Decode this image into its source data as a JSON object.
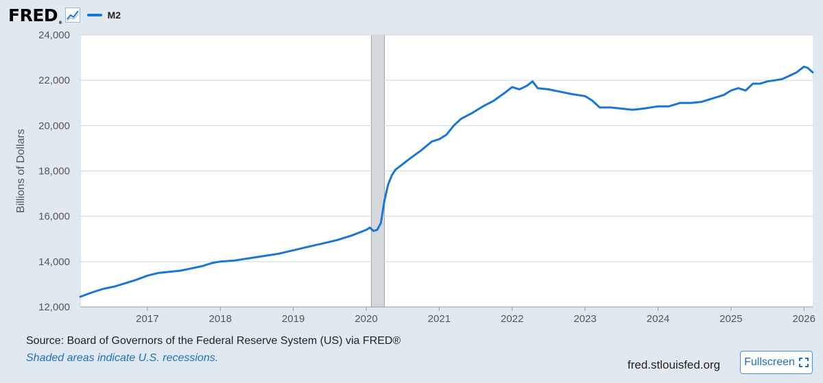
{
  "brand": {
    "name": "FRED",
    "reg": "®"
  },
  "colors": {
    "series": "#1976d2",
    "recession": "#d5d9de",
    "grid": "#cfd6dc",
    "background": "#e1e9f0",
    "plot": "#ffffff"
  },
  "legend": {
    "label": "M2"
  },
  "chart_data": {
    "type": "line",
    "title": "M2",
    "ylabel": "Billions of Dollars",
    "xlabel": "",
    "ylim": [
      12000,
      24000
    ],
    "xlim": [
      2016.08,
      2026.12
    ],
    "yticks": [
      12000,
      14000,
      16000,
      18000,
      20000,
      22000,
      24000
    ],
    "ytick_labels": [
      "12,000",
      "14,000",
      "16,000",
      "18,000",
      "20,000",
      "22,000",
      "24,000"
    ],
    "xticks": [
      2017,
      2018,
      2019,
      2020,
      2021,
      2022,
      2023,
      2024,
      2025,
      2026
    ],
    "xtick_labels": [
      "2017",
      "2018",
      "2019",
      "2020",
      "2021",
      "2022",
      "2023",
      "2024",
      "2025",
      "2026"
    ],
    "grid": true,
    "recessions": [
      {
        "start": 2020.07,
        "end": 2020.25
      }
    ],
    "series": [
      {
        "name": "M2",
        "x": [
          2016.08,
          2016.25,
          2016.4,
          2016.55,
          2016.7,
          2016.85,
          2017.0,
          2017.15,
          2017.3,
          2017.45,
          2017.6,
          2017.75,
          2017.9,
          2018.0,
          2018.2,
          2018.4,
          2018.6,
          2018.8,
          2019.0,
          2019.2,
          2019.4,
          2019.6,
          2019.8,
          2020.0,
          2020.05,
          2020.1,
          2020.15,
          2020.2,
          2020.25,
          2020.3,
          2020.35,
          2020.4,
          2020.5,
          2020.6,
          2020.75,
          2020.9,
          2021.0,
          2021.1,
          2021.2,
          2021.3,
          2021.45,
          2021.6,
          2021.75,
          2021.9,
          2022.0,
          2022.1,
          2022.2,
          2022.28,
          2022.35,
          2022.5,
          2022.65,
          2022.8,
          2023.0,
          2023.1,
          2023.2,
          2023.35,
          2023.5,
          2023.65,
          2023.8,
          2024.0,
          2024.15,
          2024.3,
          2024.45,
          2024.6,
          2024.75,
          2024.9,
          2025.0,
          2025.1,
          2025.2,
          2025.3,
          2025.4,
          2025.5,
          2025.6,
          2025.7,
          2025.8,
          2025.9,
          2026.0,
          2026.05,
          2026.12
        ],
        "values": [
          12450,
          12650,
          12800,
          12900,
          13050,
          13200,
          13380,
          13500,
          13550,
          13600,
          13700,
          13800,
          13950,
          14000,
          14050,
          14150,
          14250,
          14350,
          14500,
          14650,
          14800,
          14950,
          15150,
          15400,
          15500,
          15350,
          15400,
          15700,
          16700,
          17400,
          17800,
          18050,
          18300,
          18550,
          18900,
          19300,
          19400,
          19600,
          20000,
          20300,
          20550,
          20850,
          21100,
          21450,
          21700,
          21600,
          21750,
          21950,
          21650,
          21600,
          21500,
          21400,
          21300,
          21100,
          20800,
          20800,
          20750,
          20700,
          20750,
          20850,
          20850,
          21000,
          21000,
          21050,
          21200,
          21350,
          21550,
          21650,
          21550,
          21850,
          21850,
          21950,
          22000,
          22050,
          22200,
          22350,
          22600,
          22550,
          22350
        ]
      }
    ]
  },
  "footer": {
    "source": "Source: Board of Governors of the Federal Reserve System (US) via FRED®",
    "note": "Shaded areas indicate U.S. recessions.",
    "site": "fred.stlouisfed.org",
    "fullscreen_label": "Fullscreen"
  }
}
